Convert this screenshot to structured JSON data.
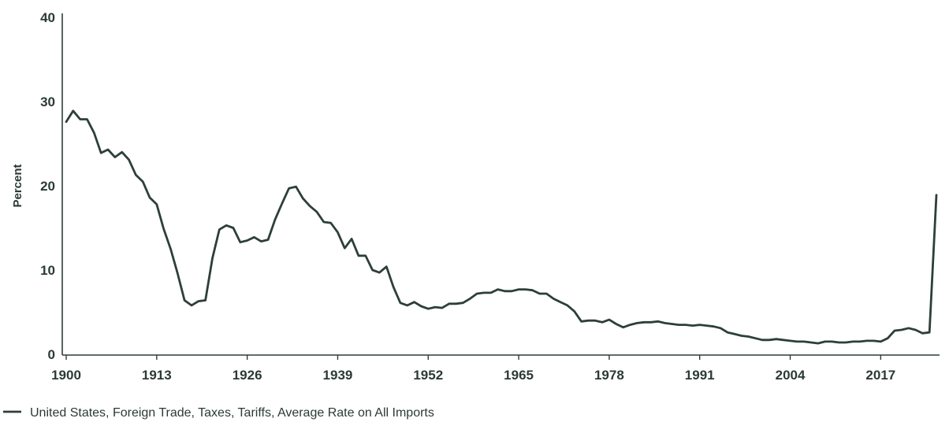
{
  "chart_data": {
    "type": "line",
    "title": "",
    "xlabel": "",
    "ylabel": "Percent",
    "ylim": [
      0,
      40
    ],
    "xlim": [
      1900,
      2025
    ],
    "grid": false,
    "y_ticks": [
      0,
      10,
      20,
      30,
      40
    ],
    "x_ticks": [
      1900,
      1913,
      1926,
      1939,
      1952,
      1965,
      1978,
      1991,
      2004,
      2017
    ],
    "legend_position": "bottom-left",
    "colors": {
      "line": "#2d3f38",
      "axis": "#2d3f38",
      "text": "#2b3a35"
    },
    "series": [
      {
        "name": "United States, Foreign Trade, Taxes, Tariffs, Average Rate on All Imports",
        "x": [
          1900,
          1901,
          1902,
          1903,
          1904,
          1905,
          1906,
          1907,
          1908,
          1909,
          1910,
          1911,
          1912,
          1913,
          1914,
          1915,
          1916,
          1917,
          1918,
          1919,
          1920,
          1921,
          1922,
          1923,
          1924,
          1925,
          1926,
          1927,
          1928,
          1929,
          1930,
          1931,
          1932,
          1933,
          1934,
          1935,
          1936,
          1937,
          1938,
          1939,
          1940,
          1941,
          1942,
          1943,
          1944,
          1945,
          1946,
          1947,
          1948,
          1949,
          1950,
          1951,
          1952,
          1953,
          1954,
          1955,
          1956,
          1957,
          1958,
          1959,
          1960,
          1961,
          1962,
          1963,
          1964,
          1965,
          1966,
          1967,
          1968,
          1969,
          1970,
          1971,
          1972,
          1973,
          1974,
          1975,
          1976,
          1977,
          1978,
          1979,
          1980,
          1981,
          1982,
          1983,
          1984,
          1985,
          1986,
          1987,
          1988,
          1989,
          1990,
          1991,
          1992,
          1993,
          1994,
          1995,
          1996,
          1997,
          1998,
          1999,
          2000,
          2001,
          2002,
          2003,
          2004,
          2005,
          2006,
          2007,
          2008,
          2009,
          2010,
          2011,
          2012,
          2013,
          2014,
          2015,
          2016,
          2017,
          2018,
          2019,
          2020,
          2021,
          2022,
          2023,
          2024,
          2025
        ],
        "values": [
          27.6,
          28.9,
          27.9,
          27.9,
          26.3,
          23.9,
          24.3,
          23.4,
          24.0,
          23.1,
          21.3,
          20.5,
          18.6,
          17.8,
          14.9,
          12.5,
          9.6,
          6.4,
          5.8,
          6.3,
          6.4,
          11.4,
          14.8,
          15.3,
          15.0,
          13.3,
          13.5,
          13.9,
          13.4,
          13.6,
          16.0,
          17.9,
          19.7,
          19.9,
          18.5,
          17.6,
          16.9,
          15.7,
          15.6,
          14.5,
          12.6,
          13.7,
          11.7,
          11.7,
          10.0,
          9.7,
          10.4,
          8.0,
          6.1,
          5.8,
          6.2,
          5.7,
          5.4,
          5.6,
          5.5,
          6.0,
          6.0,
          6.1,
          6.6,
          7.2,
          7.3,
          7.3,
          7.7,
          7.5,
          7.5,
          7.7,
          7.7,
          7.6,
          7.2,
          7.2,
          6.6,
          6.2,
          5.8,
          5.1,
          3.9,
          4.0,
          4.0,
          3.8,
          4.1,
          3.6,
          3.2,
          3.5,
          3.7,
          3.8,
          3.8,
          3.9,
          3.7,
          3.6,
          3.5,
          3.5,
          3.4,
          3.5,
          3.4,
          3.3,
          3.1,
          2.6,
          2.4,
          2.2,
          2.1,
          1.9,
          1.7,
          1.7,
          1.8,
          1.7,
          1.6,
          1.5,
          1.5,
          1.4,
          1.3,
          1.5,
          1.5,
          1.4,
          1.4,
          1.5,
          1.5,
          1.6,
          1.6,
          1.5,
          1.9,
          2.8,
          2.9,
          3.1,
          2.9,
          2.5,
          2.6,
          18.9
        ]
      }
    ]
  }
}
